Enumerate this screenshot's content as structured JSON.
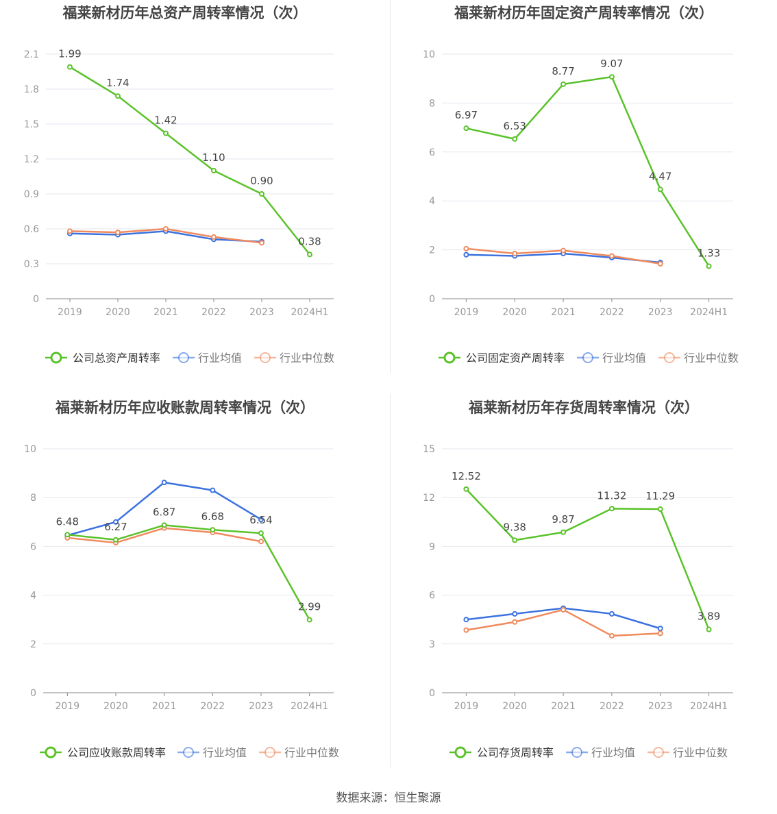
{
  "colors": {
    "company": "#5ac229",
    "avg": "#3b72e0",
    "median": "#f08a5d",
    "axis": "#999999",
    "grid": "#e4e7ef",
    "title": "#444444",
    "label": "#444444"
  },
  "legend_labels": {
    "avg": "行业均值",
    "median": "行业中位数"
  },
  "source": "数据来源：恒生聚源",
  "chart_data": [
    {
      "type": "line",
      "title": "福莱新材历年总资产周转率情况（次）",
      "categories": [
        "2019",
        "2020",
        "2021",
        "2022",
        "2023",
        "2024H1"
      ],
      "y_ticks": [
        "0",
        "0.3",
        "0.6",
        "0.9",
        "1.2",
        "1.5",
        "1.8",
        "2.1"
      ],
      "ylim": [
        0,
        2.1
      ],
      "grid": true,
      "legend_position": "bottom",
      "series": [
        {
          "name": "公司总资产周转率",
          "role": "company",
          "values": [
            1.99,
            1.74,
            1.42,
            1.1,
            0.9,
            0.38
          ],
          "labels": [
            "1.99",
            "1.74",
            "1.42",
            "1.10",
            "0.90",
            "0.38"
          ]
        },
        {
          "name": "行业均值",
          "role": "avg",
          "values": [
            0.56,
            0.55,
            0.58,
            0.51,
            0.49,
            null
          ]
        },
        {
          "name": "行业中位数",
          "role": "median",
          "values": [
            0.58,
            0.57,
            0.6,
            0.53,
            0.48,
            null
          ]
        }
      ]
    },
    {
      "type": "line",
      "title": "福莱新材历年固定资产周转率情况（次）",
      "categories": [
        "2019",
        "2020",
        "2021",
        "2022",
        "2023",
        "2024H1"
      ],
      "y_ticks": [
        "0",
        "2",
        "4",
        "6",
        "8",
        "10"
      ],
      "ylim": [
        0,
        10
      ],
      "grid": true,
      "legend_position": "bottom",
      "series": [
        {
          "name": "公司固定资产周转率",
          "role": "company",
          "values": [
            6.97,
            6.53,
            8.77,
            9.07,
            4.47,
            1.33
          ],
          "labels": [
            "6.97",
            "6.53",
            "8.77",
            "9.07",
            "4.47",
            "1.33"
          ]
        },
        {
          "name": "行业均值",
          "role": "avg",
          "values": [
            1.8,
            1.75,
            1.85,
            1.68,
            1.48,
            null
          ]
        },
        {
          "name": "行业中位数",
          "role": "median",
          "values": [
            2.05,
            1.85,
            1.97,
            1.75,
            1.43,
            null
          ]
        }
      ]
    },
    {
      "type": "line",
      "title": "福莱新材历年应收账款周转率情况（次）",
      "categories": [
        "2019",
        "2020",
        "2021",
        "2022",
        "2023",
        "2024H1"
      ],
      "y_ticks": [
        "0",
        "2",
        "4",
        "6",
        "8",
        "10"
      ],
      "ylim": [
        0,
        10
      ],
      "grid": true,
      "legend_position": "bottom",
      "series": [
        {
          "name": "公司应收账款周转率",
          "role": "company",
          "values": [
            6.48,
            6.27,
            6.87,
            6.68,
            6.54,
            2.99
          ],
          "labels": [
            "6.48",
            "6.27",
            "6.87",
            "6.68",
            "6.54",
            "2.99"
          ]
        },
        {
          "name": "行业均值",
          "role": "avg",
          "values": [
            6.45,
            7.0,
            8.62,
            8.3,
            7.1,
            null
          ]
        },
        {
          "name": "行业中位数",
          "role": "median",
          "values": [
            6.35,
            6.15,
            6.75,
            6.57,
            6.2,
            null
          ]
        }
      ]
    },
    {
      "type": "line",
      "title": "福莱新材历年存货周转率情况（次）",
      "categories": [
        "2019",
        "2020",
        "2021",
        "2022",
        "2023",
        "2024H1"
      ],
      "y_ticks": [
        "0",
        "3",
        "6",
        "9",
        "12",
        "15"
      ],
      "ylim": [
        0,
        15
      ],
      "grid": true,
      "legend_position": "bottom",
      "series": [
        {
          "name": "公司存货周转率",
          "role": "company",
          "values": [
            12.52,
            9.38,
            9.87,
            11.32,
            11.29,
            3.89
          ],
          "labels": [
            "12.52",
            "9.38",
            "9.87",
            "11.32",
            "11.29",
            "3.89"
          ]
        },
        {
          "name": "行业均值",
          "role": "avg",
          "values": [
            4.5,
            4.85,
            5.2,
            4.85,
            3.95,
            null
          ]
        },
        {
          "name": "行业中位数",
          "role": "median",
          "values": [
            3.85,
            4.35,
            5.1,
            3.5,
            3.65,
            null
          ]
        }
      ]
    }
  ]
}
